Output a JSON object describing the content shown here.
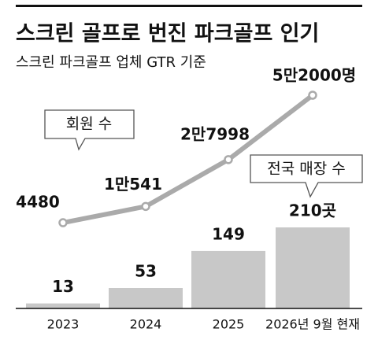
{
  "chart_data": {
    "type": "bar-line",
    "title": "스크린 골프로 번진 파크골프 인기",
    "subtitle": "스크린 파크골프 업체 GTR 기준",
    "categories": [
      "2023",
      "2024",
      "2025",
      "2026년 9월 현재"
    ],
    "series": [
      {
        "name": "회원 수",
        "type": "line",
        "color": "#aaaaaa",
        "values": [
          4480,
          10541,
          27998,
          52000
        ],
        "value_labels": [
          "4480",
          "1만541",
          "2만7998",
          "5만2000명"
        ]
      },
      {
        "name": "전국 매장 수",
        "type": "bar",
        "color": "#c8c8c8",
        "values": [
          13,
          53,
          149,
          210
        ],
        "value_labels": [
          "13",
          "53",
          "149",
          "210곳"
        ]
      }
    ]
  }
}
